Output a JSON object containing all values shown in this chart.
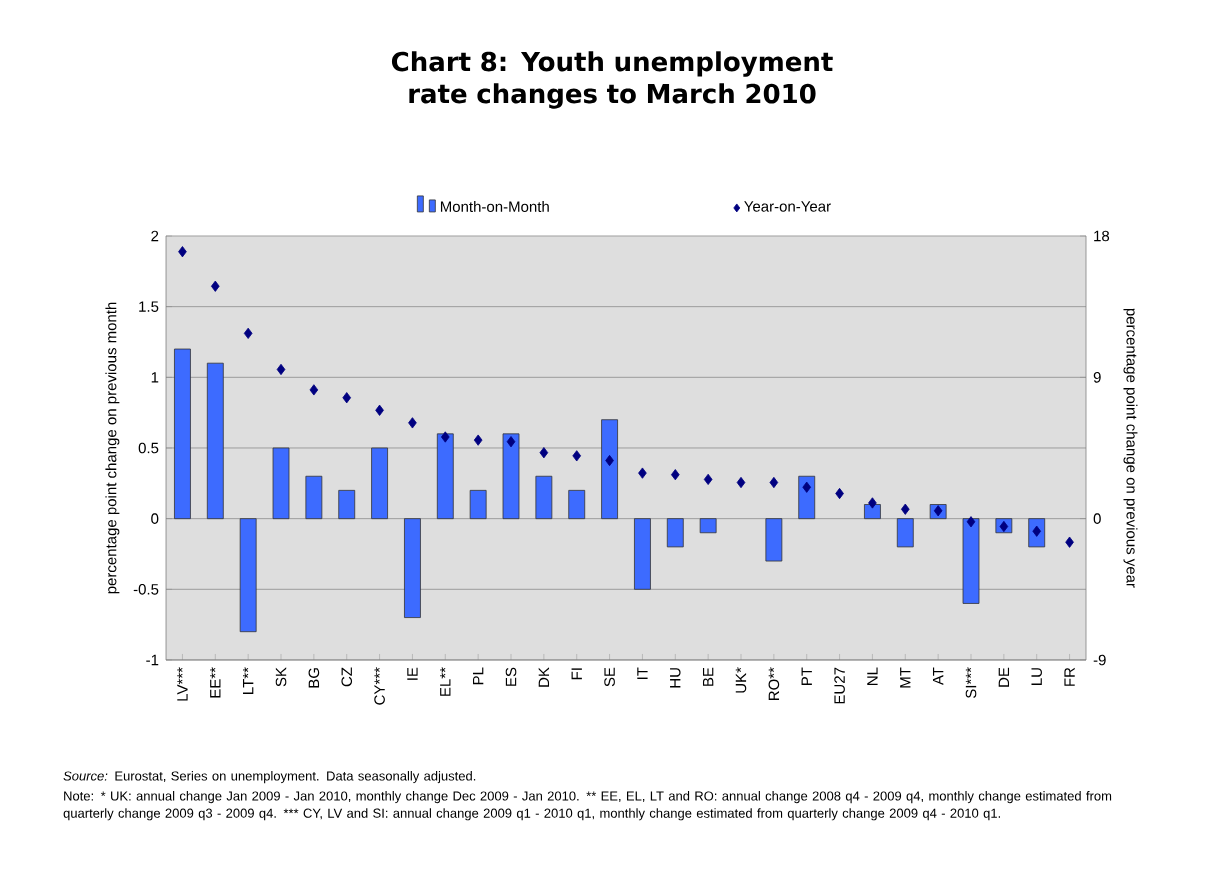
{
  "chart_data": {
    "type": "bar",
    "title": "Chart 8: Youth unemployment rate changes to March 2010",
    "categories": [
      "LV***",
      "EE**",
      "LT**",
      "SK",
      "BG",
      "CZ",
      "CY***",
      "IE",
      "EL**",
      "PL",
      "ES",
      "DK",
      "FI",
      "SE",
      "IT",
      "HU",
      "BE",
      "UK*",
      "RO**",
      "PT",
      "EU27",
      "NL",
      "MT",
      "AT",
      "SI***",
      "DE",
      "LU",
      "FR"
    ],
    "series": [
      {
        "name": "Month-on-Month",
        "color": "#3d6bff",
        "values": [
          1.2,
          1.1,
          -0.8,
          0.5,
          0.3,
          0.2,
          0.5,
          -0.7,
          0.6,
          0.2,
          0.6,
          0.3,
          0.2,
          0.7,
          -0.5,
          -0.2,
          -0.1,
          null,
          -0.3,
          0.3,
          null,
          0.1,
          -0.2,
          0.1,
          -0.6,
          -0.1,
          -0.2,
          null
        ]
      },
      {
        "name": "Year-on-Year",
        "type": "scatter",
        "axis": "y2",
        "marker": "diamond",
        "color": "#000080",
        "values": [
          17.0,
          14.8,
          11.8,
          9.5,
          8.2,
          7.7,
          6.9,
          6.1,
          5.2,
          5.0,
          4.9,
          4.2,
          4.0,
          3.7,
          2.9,
          2.8,
          2.5,
          2.3,
          2.3,
          2.0,
          1.6,
          1.0,
          0.6,
          0.5,
          -0.2,
          -0.5,
          -0.8,
          -1.5
        ]
      }
    ],
    "ylabel": "percentage point change on previous month",
    "y2label": "percentage point change on previous year",
    "ylim": [
      -1,
      2
    ],
    "yticks": [
      -1,
      -0.5,
      0,
      0.5,
      1,
      1.5,
      2
    ],
    "y2lim": [
      -9,
      18
    ],
    "y2ticks": [
      -9,
      0,
      9,
      18
    ],
    "grid": "y",
    "legend": "top",
    "annotations": [
      "*Source:* Eurostat, Series on unemployment. Data seasonally adjusted.",
      "Note: * UK: annual change Jan 2009 - Jan 2010, monthly change Dec 2009 - Jan 2010. ** EE, EL, LT and RO: annual change 2008 q4 - 2009 q4, monthly change estimated from quarterly change 2009 q3 - 2009 q4. *** CY, LV and SI: annual change 2009 q1 - 2010 q1, monthly change estimated from quarterly change 2009 q4 - 2010 q1."
    ]
  }
}
